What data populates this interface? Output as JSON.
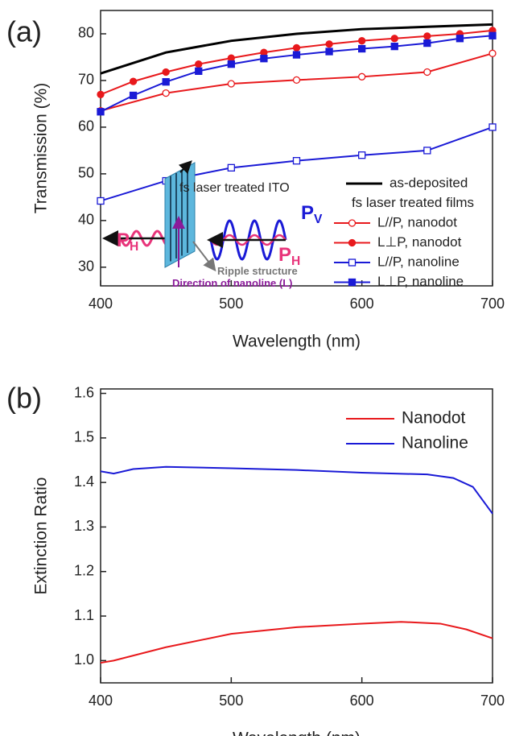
{
  "chart_data": [
    {
      "type": "line",
      "panel_label": "(a)",
      "xlabel": "Wavelength (nm)",
      "ylabel": "Transmission (%)",
      "xlim": [
        400,
        700
      ],
      "xticks": [
        400,
        500,
        600,
        700
      ],
      "ylim": [
        26,
        85
      ],
      "yticks": [
        30,
        40,
        50,
        60,
        70,
        80
      ],
      "legend": "lower right",
      "legend_subtitle": "fs laser treated films",
      "annotations": [
        {
          "text": "fs laser treated ITO"
        },
        {
          "text": "P",
          "sub": "H"
        },
        {
          "text": "P",
          "sub": "V"
        },
        {
          "text": "P",
          "sub": "H"
        },
        {
          "text": "Ripple structure"
        },
        {
          "text": "Direction of nanoline (L)"
        }
      ],
      "series": [
        {
          "name": "as-deposited",
          "color": "#000000",
          "marker": "none",
          "x": [
            400,
            450,
            500,
            550,
            600,
            650,
            700
          ],
          "values": [
            71.5,
            76,
            78.5,
            80,
            81,
            81.5,
            82
          ]
        },
        {
          "name": "L//P, nanodot",
          "color": "#e8191c",
          "marker": "circle-open",
          "x": [
            400,
            450,
            500,
            550,
            600,
            650,
            700
          ],
          "values": [
            63.5,
            67.3,
            69.3,
            70.1,
            70.8,
            71.8,
            75.8
          ]
        },
        {
          "name": "L⊥P, nanodot",
          "color": "#e8191c",
          "marker": "circle",
          "x": [
            400,
            425,
            450,
            475,
            500,
            525,
            550,
            575,
            600,
            625,
            650,
            675,
            700
          ],
          "values": [
            67,
            69.8,
            71.8,
            73.5,
            74.8,
            76,
            77,
            77.8,
            78.5,
            79,
            79.5,
            80,
            80.7
          ]
        },
        {
          "name": "L//P, nanoline",
          "color": "#1a1ad6",
          "marker": "square-open",
          "x": [
            400,
            450,
            500,
            550,
            600,
            650,
            700
          ],
          "values": [
            44.2,
            48.5,
            51.3,
            52.8,
            54,
            55,
            60
          ]
        },
        {
          "name": "L⊥P, nanoline",
          "color": "#1a1ad6",
          "marker": "square",
          "x": [
            400,
            425,
            450,
            475,
            500,
            525,
            550,
            575,
            600,
            625,
            650,
            675,
            700
          ],
          "values": [
            63.3,
            66.8,
            69.7,
            72,
            73.5,
            74.7,
            75.5,
            76.2,
            76.8,
            77.3,
            78,
            79,
            79.6
          ]
        }
      ]
    },
    {
      "type": "line",
      "panel_label": "(b)",
      "xlabel": "Wavelength (nm)",
      "ylabel": "Extinction Ratio",
      "xlim": [
        400,
        700
      ],
      "xticks": [
        400,
        500,
        600,
        700
      ],
      "ylim": [
        0.95,
        1.61
      ],
      "yticks": [
        {
          "value": 1,
          "label": "1.0"
        },
        1.1,
        1.2,
        1.3,
        1.4,
        1.5,
        1.6
      ],
      "legend": "upper right",
      "series": [
        {
          "name": "Nanodot",
          "color": "#e8191c",
          "marker": "none",
          "x": [
            400,
            410,
            450,
            500,
            550,
            600,
            630,
            660,
            680,
            700
          ],
          "values": [
            0.995,
            1.0,
            1.03,
            1.06,
            1.075,
            1.083,
            1.087,
            1.083,
            1.07,
            1.05
          ]
        },
        {
          "name": "Nanoline",
          "color": "#1a1ad6",
          "marker": "none",
          "x": [
            400,
            410,
            425,
            450,
            500,
            550,
            600,
            650,
            670,
            685,
            700
          ],
          "values": [
            1.425,
            1.42,
            1.43,
            1.435,
            1.432,
            1.428,
            1.422,
            1.418,
            1.41,
            1.39,
            1.33
          ]
        }
      ]
    }
  ]
}
